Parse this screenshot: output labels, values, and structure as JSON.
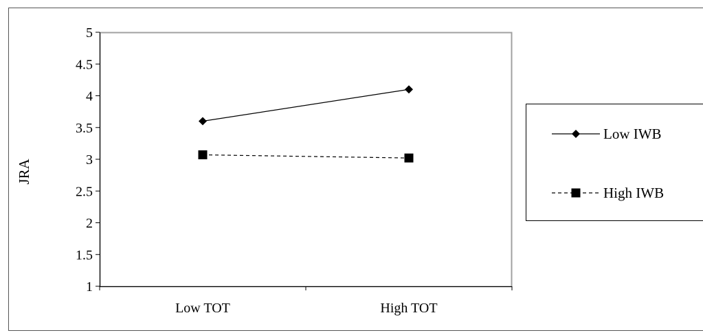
{
  "chart_data": {
    "type": "line",
    "categories": [
      "Low TOT",
      "High TOT"
    ],
    "series": [
      {
        "name": "Low IWB",
        "values": [
          3.6,
          4.1
        ],
        "marker": "diamond",
        "line_style": "solid",
        "color": "#000000"
      },
      {
        "name": "High IWB",
        "values": [
          3.07,
          3.02
        ],
        "marker": "square",
        "line_style": "dashed",
        "color": "#000000"
      }
    ],
    "title": "",
    "xlabel": "",
    "ylabel": "JRA",
    "ylim": [
      1,
      5
    ],
    "yticks": [
      "1",
      "1.5",
      "2",
      "2.5",
      "3",
      "3.5",
      "4",
      "4.5",
      "5"
    ],
    "grid": false,
    "legend_position": "right"
  }
}
